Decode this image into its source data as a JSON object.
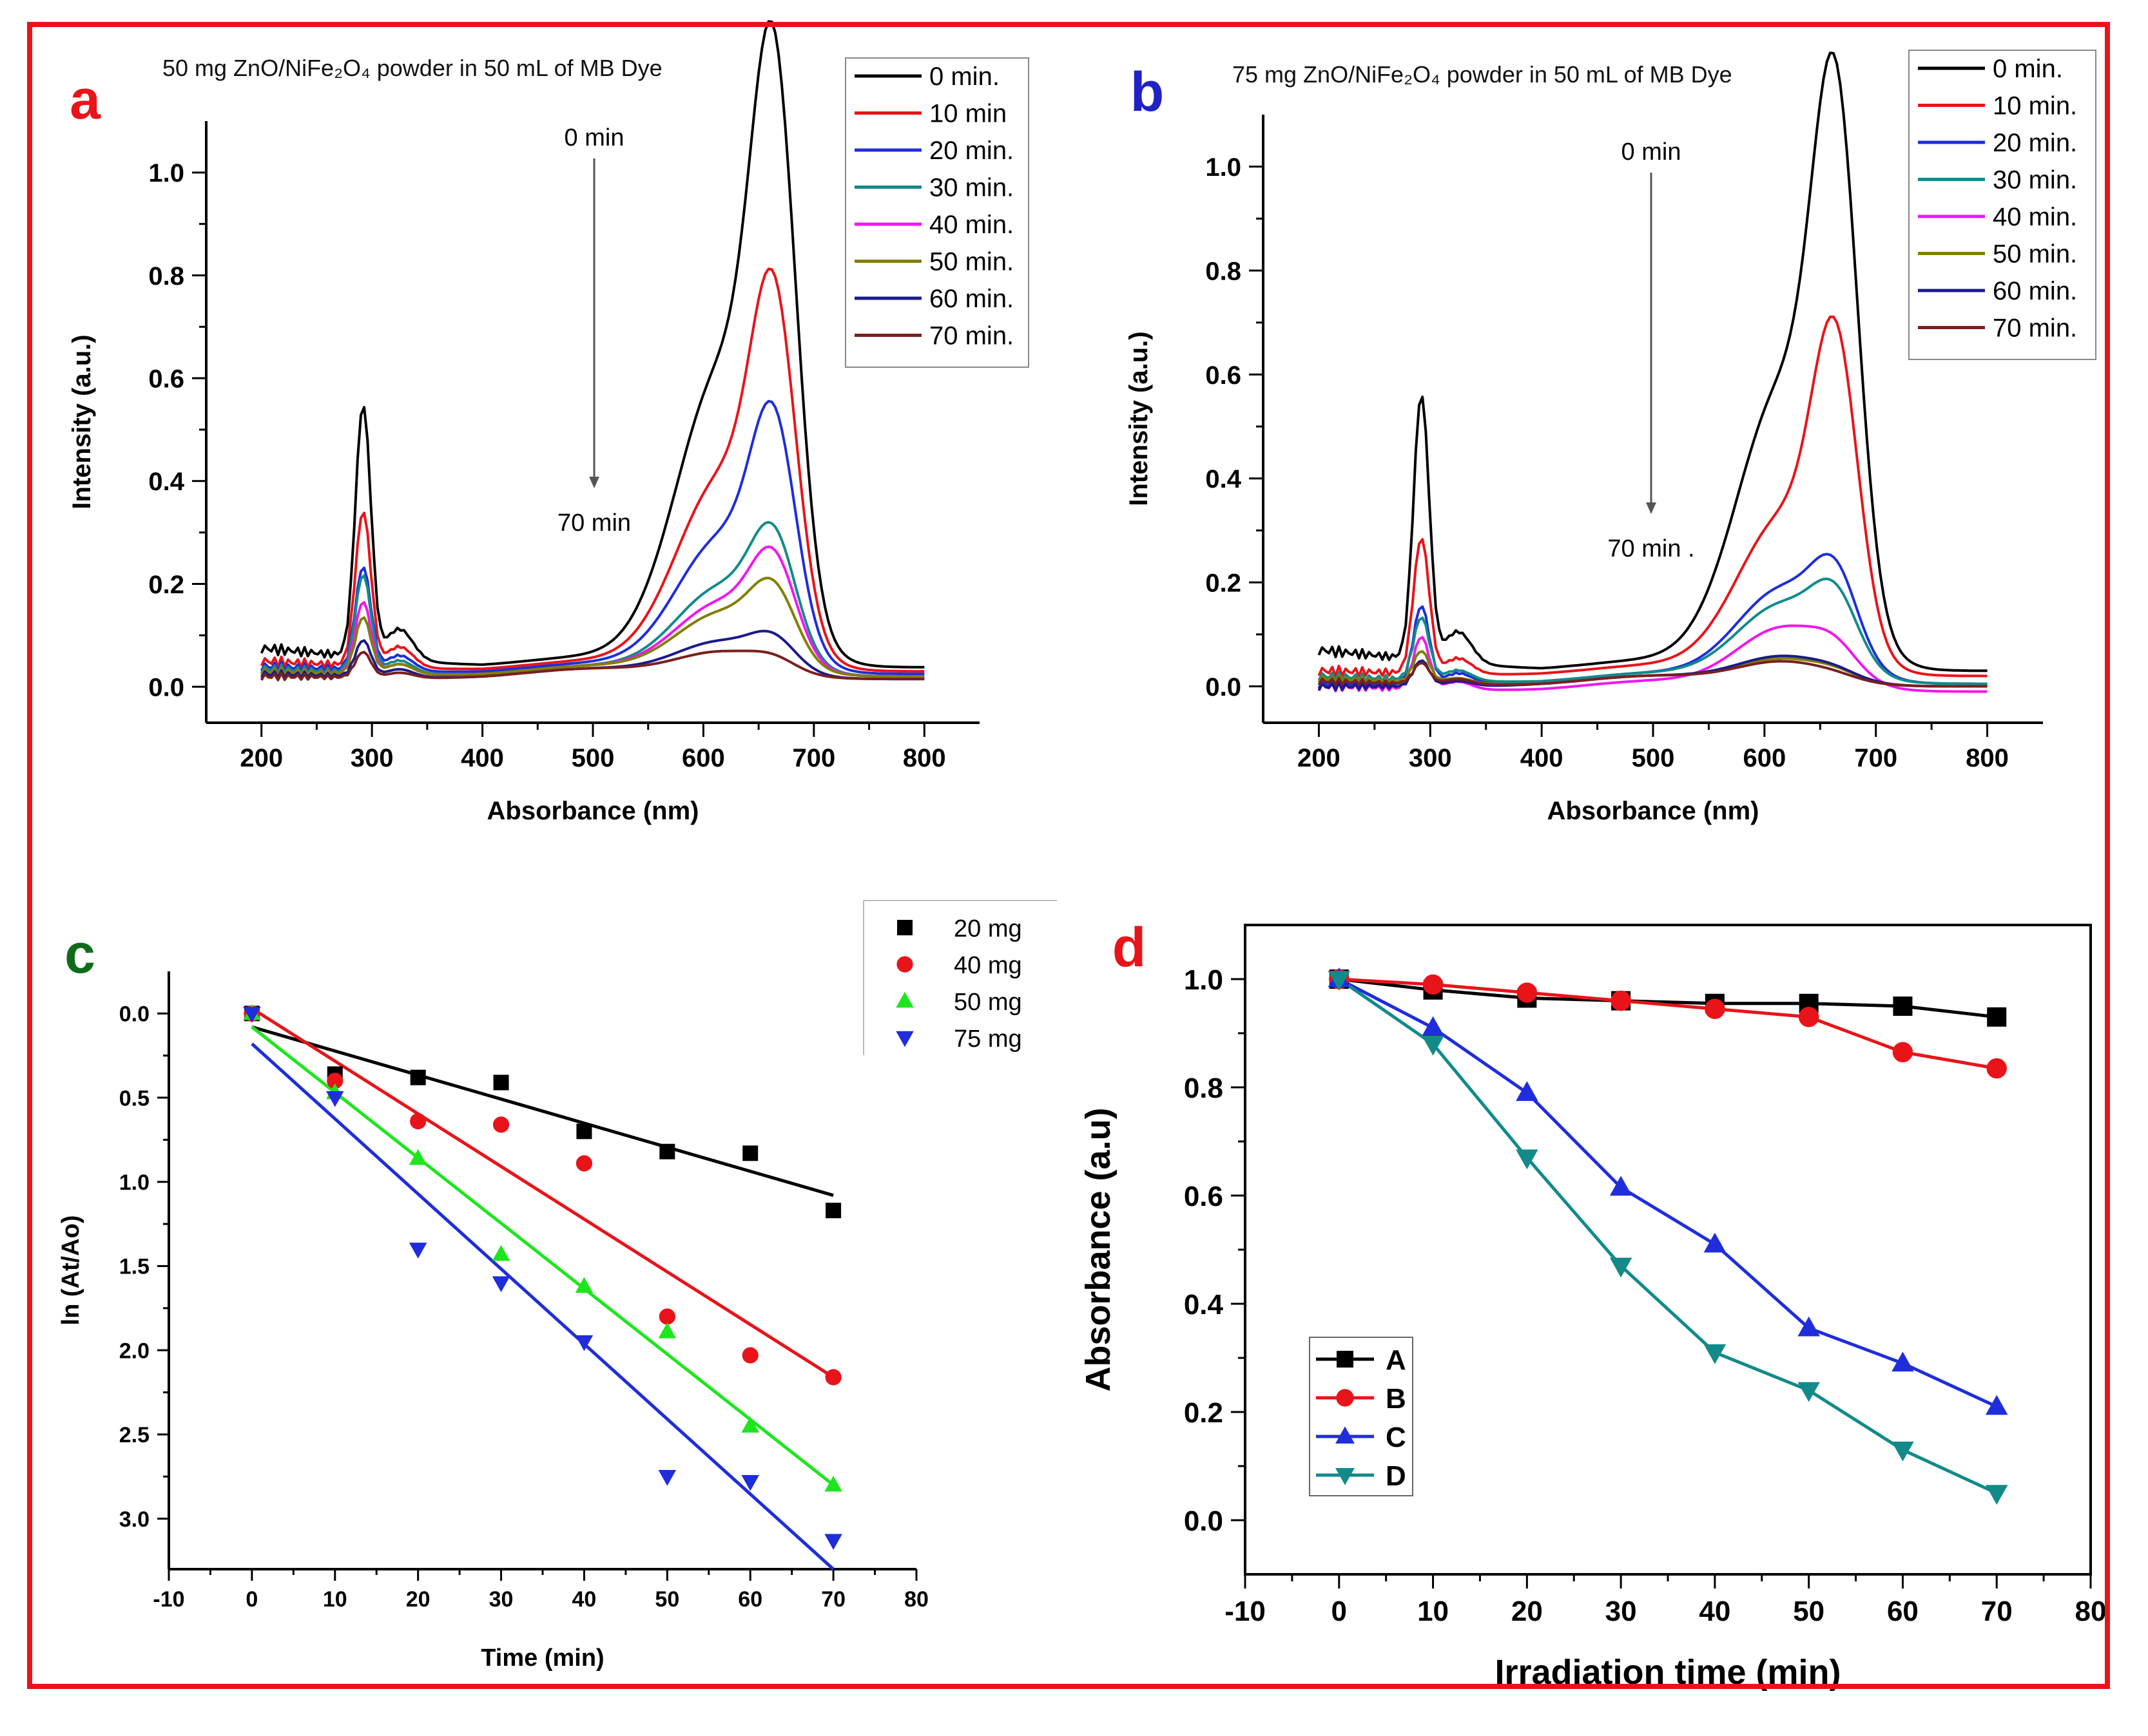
{
  "colors": {
    "frame": "#e8141a",
    "panel_a_letter": "#e8141a",
    "panel_b_letter": "#1f22c4",
    "panel_c_letter": "#0f6b1c",
    "panel_d_letter": "#e8141a"
  },
  "chart_data": [
    {
      "panel": "a",
      "type": "line",
      "title": "50 mg ZnO/NiFe₂O₄ powder in 50 mL of MB Dye",
      "xlabel": "Absorbance (nm)",
      "ylabel": "Intensity (a.u.)",
      "xlim": [
        150,
        850
      ],
      "ylim": [
        -0.07,
        1.1
      ],
      "xticks": [
        200,
        300,
        400,
        500,
        600,
        700,
        800
      ],
      "xtick_labels": [
        "200",
        "300",
        "400",
        "500",
        "600",
        "700",
        "800"
      ],
      "yticks": [
        0.0,
        0.2,
        0.4,
        0.6,
        0.8,
        1.0
      ],
      "ytick_labels": [
        "0.0",
        "0.2",
        "0.4",
        "0.6",
        "0.8",
        "1.0"
      ],
      "legend_position": "top-right",
      "annotation_top": "0 min",
      "annotation_bottom": "70 min",
      "series": [
        {
          "name": "0 min.",
          "color": "#000000",
          "b0": 0.075,
          "uv": 0.49,
          "sh": 0.06,
          "g": 0.57,
          "r": 0.93,
          "c": 0.038
        },
        {
          "name": "10 min",
          "color": "#e8141a",
          "b0": 0.05,
          "uv": 0.3,
          "sh": 0.04,
          "g": 0.37,
          "r": 0.57,
          "c": 0.03
        },
        {
          "name": "20 min.",
          "color": "#1f2ddc",
          "b0": 0.04,
          "uv": 0.2,
          "sh": 0.03,
          "g": 0.26,
          "r": 0.38,
          "c": 0.025
        },
        {
          "name": "30 min.",
          "color": "#128a8a",
          "b0": 0.035,
          "uv": 0.19,
          "sh": 0.025,
          "g": 0.17,
          "r": 0.2,
          "c": 0.02
        },
        {
          "name": "40 min.",
          "color": "#f016f0",
          "b0": 0.03,
          "uv": 0.14,
          "sh": 0.02,
          "g": 0.14,
          "r": 0.17,
          "c": 0.02
        },
        {
          "name": "50 min.",
          "color": "#808000",
          "b0": 0.03,
          "uv": 0.11,
          "sh": 0.02,
          "g": 0.12,
          "r": 0.12,
          "c": 0.02
        },
        {
          "name": "60 min.",
          "color": "#1a1a8c",
          "b0": 0.025,
          "uv": 0.07,
          "sh": 0.015,
          "g": 0.07,
          "r": 0.05,
          "c": 0.015
        },
        {
          "name": "70 min.",
          "color": "#7a1f1f",
          "b0": 0.02,
          "uv": 0.05,
          "sh": 0.01,
          "g": 0.05,
          "r": 0.02,
          "c": 0.015
        }
      ]
    },
    {
      "panel": "b",
      "type": "line",
      "title": "75 mg ZnO/NiFe₂O₄ powder in 50 mL of MB Dye",
      "xlabel": "Absorbance (nm)",
      "ylabel": "Intensity (a.u.)",
      "xlim": [
        150,
        850
      ],
      "ylim": [
        -0.07,
        1.1
      ],
      "xticks": [
        200,
        300,
        400,
        500,
        600,
        700,
        800
      ],
      "xtick_labels": [
        "200",
        "300",
        "400",
        "500",
        "600",
        "700",
        "800"
      ],
      "yticks": [
        0.0,
        0.2,
        0.4,
        0.6,
        0.8,
        1.0
      ],
      "ytick_labels": [
        "0.0",
        "0.2",
        "0.4",
        "0.6",
        "0.8",
        "1.0"
      ],
      "legend_position": "top-right",
      "annotation_top": "0 min",
      "annotation_bottom": "70 min .",
      "series": [
        {
          "name": "0 min.",
          "color": "#000000",
          "b0": 0.07,
          "uv": 0.51,
          "sh": 0.06,
          "g": 0.54,
          "r": 0.88,
          "c": 0.03
        },
        {
          "name": "10 min.",
          "color": "#e8141a",
          "b0": 0.03,
          "uv": 0.26,
          "sh": 0.03,
          "g": 0.3,
          "r": 0.52,
          "c": 0.02
        },
        {
          "name": "20 min.",
          "color": "#1f2ddc",
          "b0": 0.0,
          "uv": 0.15,
          "sh": 0.02,
          "g": 0.18,
          "r": 0.14,
          "c": 0.005
        },
        {
          "name": "30 min.",
          "color": "#128a8a",
          "b0": 0.02,
          "uv": 0.12,
          "sh": 0.02,
          "g": 0.15,
          "r": 0.11,
          "c": 0.005
        },
        {
          "name": "40 min.",
          "color": "#f016f0",
          "b0": 0.0,
          "uv": 0.1,
          "sh": 0.015,
          "g": 0.12,
          "r": 0.04,
          "c": -0.01
        },
        {
          "name": "50 min.",
          "color": "#808000",
          "b0": 0.015,
          "uv": 0.06,
          "sh": 0.01,
          "g": 0.05,
          "r": 0.01,
          "c": 0.0
        },
        {
          "name": "60 min.",
          "color": "#1a1a8c",
          "b0": -0.01,
          "uv": 0.05,
          "sh": 0.01,
          "g": 0.055,
          "r": 0.01,
          "c": 0.0
        },
        {
          "name": "70 min.",
          "color": "#7a1f1f",
          "b0": 0.01,
          "uv": 0.04,
          "sh": 0.01,
          "g": 0.045,
          "r": 0.005,
          "c": 0.0
        }
      ]
    },
    {
      "panel": "c",
      "type": "scatter",
      "xlabel": "Time (min)",
      "ylabel": "ln (At/Ao)",
      "xlim": [
        -10,
        80
      ],
      "ylim": [
        -0.25,
        3.3
      ],
      "y_inverted": true,
      "xticks": [
        -10,
        0,
        10,
        20,
        30,
        40,
        50,
        60,
        70,
        80
      ],
      "xtick_labels": [
        "-10",
        "0",
        "10",
        "20",
        "30",
        "40",
        "50",
        "60",
        "70",
        "80"
      ],
      "yticks": [
        0.0,
        0.5,
        1.0,
        1.5,
        2.0,
        2.5,
        3.0
      ],
      "ytick_labels": [
        "0.0",
        "0.5",
        "1.0",
        "1.5",
        "2.0",
        "2.5",
        "3.0"
      ],
      "legend_position": "top-right",
      "x": [
        0,
        10,
        20,
        30,
        40,
        50,
        60,
        70
      ],
      "series": [
        {
          "name": "20 mg",
          "color": "#000000",
          "marker": "square",
          "values": [
            0.0,
            0.36,
            0.38,
            0.41,
            0.7,
            0.82,
            0.83,
            1.17
          ],
          "fit": [
            0.08,
            1.08
          ]
        },
        {
          "name": "40 mg",
          "color": "#e8141a",
          "marker": "circle",
          "values": [
            0.0,
            0.4,
            0.64,
            0.66,
            0.89,
            1.8,
            2.03,
            2.16
          ],
          "fit": [
            -0.03,
            2.16
          ]
        },
        {
          "name": "50 mg",
          "color": "#1ee61e",
          "marker": "triangle-up",
          "values": [
            0.0,
            0.47,
            0.86,
            1.43,
            1.62,
            1.89,
            2.45,
            2.8
          ],
          "fit": [
            0.08,
            2.8
          ]
        },
        {
          "name": "75 mg",
          "color": "#1f2ddc",
          "marker": "triangle-down",
          "values": [
            0.0,
            0.5,
            1.4,
            1.6,
            1.95,
            2.75,
            2.78,
            3.13
          ],
          "fit": [
            0.18,
            3.3
          ]
        }
      ]
    },
    {
      "panel": "d",
      "type": "line",
      "xlabel": "Irradiation time (min)",
      "ylabel": "Absorbance (a.u)",
      "xlim": [
        -10,
        80
      ],
      "ylim": [
        -0.1,
        1.1
      ],
      "xticks": [
        -10,
        0,
        10,
        20,
        30,
        40,
        50,
        60,
        70,
        80
      ],
      "xtick_labels": [
        "-10",
        "0",
        "10",
        "20",
        "30",
        "40",
        "50",
        "60",
        "70",
        "80"
      ],
      "yticks": [
        0.0,
        0.2,
        0.4,
        0.6,
        0.8,
        1.0
      ],
      "ytick_labels": [
        "0.0",
        "0.2",
        "0.4",
        "0.6",
        "0.8",
        "1.0"
      ],
      "legend_position": "bottom-left",
      "x": [
        0,
        10,
        20,
        30,
        40,
        50,
        60,
        70
      ],
      "series": [
        {
          "name": "A",
          "color": "#000000",
          "marker": "square",
          "values": [
            1.0,
            0.98,
            0.965,
            0.96,
            0.955,
            0.955,
            0.95,
            0.93
          ]
        },
        {
          "name": "B",
          "color": "#e8141a",
          "marker": "circle",
          "values": [
            1.0,
            0.99,
            0.975,
            0.96,
            0.945,
            0.93,
            0.865,
            0.835
          ]
        },
        {
          "name": "C",
          "color": "#1f2ddc",
          "marker": "triangle-up",
          "values": [
            1.0,
            0.91,
            0.79,
            0.615,
            0.51,
            0.355,
            0.29,
            0.21
          ]
        },
        {
          "name": "D",
          "color": "#128a8a",
          "marker": "triangle-down",
          "values": [
            1.0,
            0.88,
            0.67,
            0.47,
            0.31,
            0.24,
            0.13,
            0.05
          ]
        }
      ]
    }
  ]
}
